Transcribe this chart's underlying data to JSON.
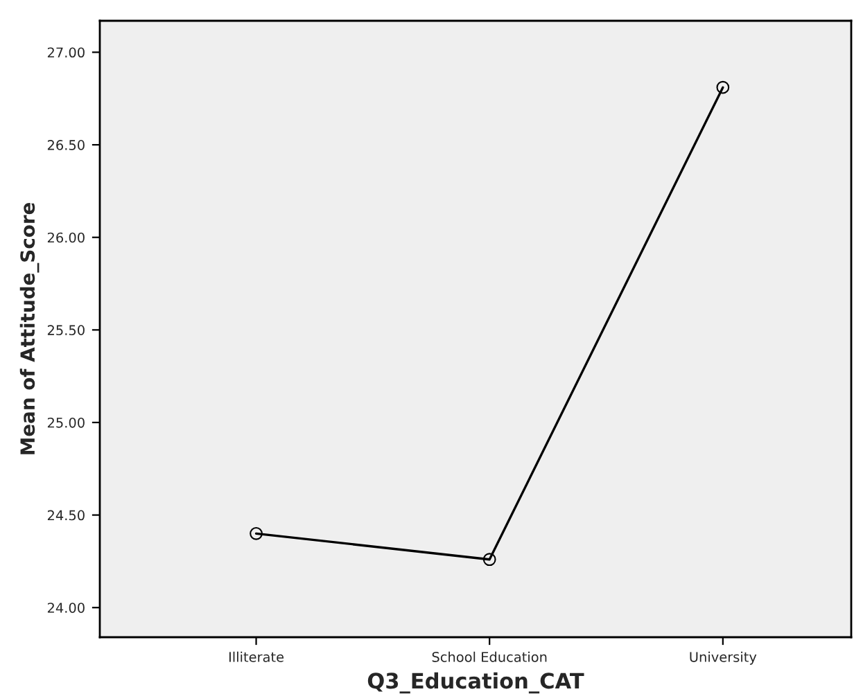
{
  "chart_data": {
    "type": "line",
    "xlabel": "Q3_Education_CAT",
    "ylabel": "Mean of Attitude_Score",
    "categories": [
      "Illiterate",
      "School Education",
      "University"
    ],
    "series": [
      {
        "color": "#000000",
        "values": [
          24.4,
          24.26,
          26.81
        ]
      }
    ],
    "marker": "circle",
    "line_style": "solid",
    "grid": false,
    "legend": false,
    "ylim": [
      23.84,
      27.17
    ],
    "yticks": [
      {
        "value": 24,
        "label": "24.00"
      },
      {
        "value": 24.5,
        "label": "24.50"
      },
      {
        "value": 25,
        "label": "25.00"
      },
      {
        "value": 25.5,
        "label": "25.50"
      },
      {
        "value": 26,
        "label": "26.00"
      },
      {
        "value": 26.5,
        "label": "26.50"
      },
      {
        "value": 27,
        "label": "27.00"
      }
    ]
  }
}
